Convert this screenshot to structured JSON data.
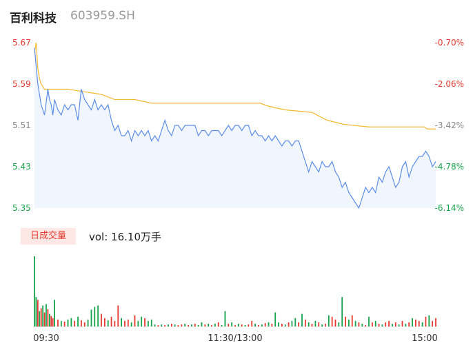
{
  "header": {
    "name": "百利科技",
    "code": "603959.SH"
  },
  "colors": {
    "up": "#e6392f",
    "down": "#16a34a",
    "flat": "#888888",
    "price_line": "#5b8de8",
    "avg_line": "#f5b82e"
  },
  "volume_panel": {
    "tag": "日成交量",
    "label": "vol: 16.10万手"
  },
  "chart_data": [
    {
      "type": "line",
      "title": "",
      "x_ticks": [
        "09:30",
        "11:30/13:00",
        "15:00"
      ],
      "y_left_ticks": [
        "5.67",
        "5.59",
        "5.51",
        "5.43",
        "5.35"
      ],
      "y_right_ticks": [
        "-0.70%",
        "-2.06%",
        "-3.42%",
        "-4.78%",
        "-6.14%"
      ],
      "ylim": [
        5.35,
        5.67
      ],
      "series": [
        {
          "name": "price",
          "x": [
            0,
            2,
            4,
            6,
            8,
            9,
            10,
            11,
            12,
            14,
            16,
            18,
            20,
            22,
            24,
            26,
            28,
            30,
            32,
            34,
            36,
            38,
            40,
            42,
            44,
            46,
            48,
            50,
            52,
            54,
            56,
            58,
            60,
            62,
            64,
            66,
            68,
            70,
            72,
            74,
            76,
            78,
            80,
            82,
            84,
            86,
            88,
            90,
            92,
            94,
            96,
            98,
            100,
            102,
            104,
            106,
            108,
            110,
            112,
            114,
            116,
            118,
            120,
            122,
            124,
            126,
            128,
            130,
            132,
            134,
            136,
            138,
            140,
            142,
            144,
            146,
            148,
            150,
            152,
            154,
            156,
            158,
            160,
            162,
            164,
            166,
            168,
            170,
            172,
            174,
            176,
            178,
            180,
            182,
            184,
            186,
            188,
            190,
            192,
            194,
            196,
            198,
            200,
            202,
            204,
            206,
            208,
            210,
            212,
            214,
            216,
            218,
            220,
            222,
            224,
            226,
            228,
            230,
            232,
            234,
            236,
            238,
            240
          ],
          "values": [
            5.66,
            5.59,
            5.55,
            5.53,
            5.58,
            5.56,
            5.55,
            5.53,
            5.56,
            5.54,
            5.53,
            5.55,
            5.54,
            5.55,
            5.55,
            5.52,
            5.58,
            5.56,
            5.55,
            5.54,
            5.56,
            5.54,
            5.55,
            5.54,
            5.55,
            5.52,
            5.5,
            5.51,
            5.49,
            5.49,
            5.5,
            5.48,
            5.5,
            5.49,
            5.5,
            5.49,
            5.5,
            5.48,
            5.49,
            5.48,
            5.5,
            5.52,
            5.5,
            5.49,
            5.51,
            5.51,
            5.5,
            5.51,
            5.51,
            5.51,
            5.51,
            5.49,
            5.5,
            5.5,
            5.49,
            5.5,
            5.5,
            5.5,
            5.49,
            5.5,
            5.51,
            5.5,
            5.51,
            5.51,
            5.5,
            5.51,
            5.51,
            5.49,
            5.5,
            5.49,
            5.49,
            5.48,
            5.49,
            5.48,
            5.49,
            5.48,
            5.47,
            5.48,
            5.48,
            5.47,
            5.48,
            5.48,
            5.46,
            5.44,
            5.42,
            5.44,
            5.43,
            5.42,
            5.44,
            5.43,
            5.43,
            5.44,
            5.42,
            5.41,
            5.39,
            5.4,
            5.38,
            5.37,
            5.36,
            5.35,
            5.37,
            5.39,
            5.38,
            5.39,
            5.38,
            5.41,
            5.4,
            5.42,
            5.43,
            5.41,
            5.39,
            5.4,
            5.43,
            5.44,
            5.41,
            5.43,
            5.44,
            5.45,
            5.45,
            5.46,
            5.45,
            5.43,
            5.44
          ]
        },
        {
          "name": "avg",
          "x": [
            0,
            1,
            2,
            3,
            4,
            6,
            20,
            40,
            48,
            60,
            70,
            100,
            120,
            135,
            140,
            150,
            166,
            175,
            185,
            200,
            220,
            233,
            235,
            240
          ],
          "values": [
            5.65,
            5.67,
            5.62,
            5.6,
            5.59,
            5.58,
            5.58,
            5.57,
            5.56,
            5.56,
            5.553,
            5.553,
            5.553,
            5.553,
            5.547,
            5.54,
            5.535,
            5.52,
            5.512,
            5.507,
            5.507,
            5.507,
            5.503,
            5.503
          ]
        }
      ]
    },
    {
      "type": "bar",
      "title": "",
      "xlim": [
        0,
        240
      ],
      "ylim": [
        0,
        100
      ],
      "x": [
        0,
        1,
        2,
        3,
        4,
        5,
        6,
        7,
        8,
        9,
        10,
        11,
        12,
        14,
        16,
        18,
        20,
        22,
        24,
        26,
        28,
        30,
        32,
        34,
        36,
        38,
        40,
        42,
        44,
        46,
        48,
        50,
        52,
        54,
        56,
        58,
        60,
        62,
        64,
        66,
        68,
        70,
        72,
        74,
        76,
        78,
        80,
        82,
        84,
        86,
        88,
        90,
        92,
        94,
        96,
        98,
        100,
        102,
        104,
        106,
        108,
        110,
        112,
        114,
        116,
        118,
        120,
        122,
        124,
        126,
        128,
        130,
        132,
        134,
        136,
        138,
        140,
        142,
        144,
        146,
        148,
        150,
        152,
        154,
        156,
        158,
        160,
        162,
        164,
        166,
        168,
        170,
        172,
        174,
        176,
        178,
        180,
        182,
        184,
        186,
        188,
        190,
        192,
        194,
        196,
        198,
        200,
        202,
        204,
        206,
        208,
        210,
        212,
        214,
        216,
        218,
        220,
        222,
        224,
        226,
        228,
        230,
        232,
        234,
        236,
        238,
        240
      ],
      "values": [
        100,
        42,
        38,
        22,
        26,
        30,
        20,
        32,
        25,
        18,
        15,
        12,
        38,
        10,
        8,
        7,
        10,
        12,
        8,
        14,
        9,
        6,
        10,
        24,
        28,
        30,
        18,
        12,
        9,
        14,
        8,
        30,
        12,
        8,
        10,
        6,
        16,
        8,
        14,
        12,
        8,
        10,
        3,
        2,
        3,
        2,
        3,
        4,
        3,
        2,
        3,
        4,
        2,
        3,
        4,
        2,
        6,
        3,
        4,
        2,
        4,
        6,
        2,
        22,
        4,
        6,
        2,
        4,
        3,
        2,
        3,
        8,
        4,
        2,
        3,
        5,
        6,
        4,
        20,
        6,
        4,
        3,
        6,
        8,
        12,
        6,
        18,
        10,
        6,
        4,
        8,
        6,
        3,
        4,
        16,
        14,
        10,
        6,
        42,
        14,
        10,
        16,
        8,
        6,
        4,
        2,
        14,
        6,
        8,
        4,
        3,
        6,
        8,
        4,
        6,
        3,
        8,
        4,
        6,
        12,
        10,
        8,
        6,
        14,
        16,
        8,
        12
      ],
      "colors": [
        "down",
        "down",
        "up",
        "down",
        "up",
        "down",
        "up",
        "down",
        "up",
        "down",
        "up",
        "up",
        "down",
        "up",
        "down",
        "up",
        "down",
        "down",
        "up",
        "down",
        "up",
        "up",
        "down",
        "down",
        "down",
        "down",
        "up",
        "up",
        "down",
        "up",
        "up",
        "up",
        "down",
        "up",
        "up",
        "down",
        "up",
        "down",
        "down",
        "up",
        "down",
        "down",
        "down",
        "up",
        "down",
        "up",
        "down",
        "up",
        "down",
        "up",
        "up",
        "down",
        "up",
        "down",
        "up",
        "down",
        "down",
        "up",
        "down",
        "up",
        "down",
        "up",
        "down",
        "down",
        "up",
        "down",
        "up",
        "down",
        "up",
        "down",
        "up",
        "up",
        "down",
        "up",
        "down",
        "up",
        "down",
        "up",
        "down",
        "down",
        "up",
        "down",
        "up",
        "down",
        "down",
        "up",
        "down",
        "up",
        "down",
        "up",
        "down",
        "up",
        "down",
        "up",
        "down",
        "up",
        "up",
        "down",
        "down",
        "up",
        "down",
        "up",
        "down",
        "up",
        "down",
        "up",
        "down",
        "up",
        "down",
        "up",
        "down",
        "up",
        "up",
        "down",
        "up",
        "down",
        "up",
        "down",
        "up",
        "down",
        "up",
        "up",
        "down",
        "up",
        "down",
        "up",
        "up"
      ]
    }
  ]
}
